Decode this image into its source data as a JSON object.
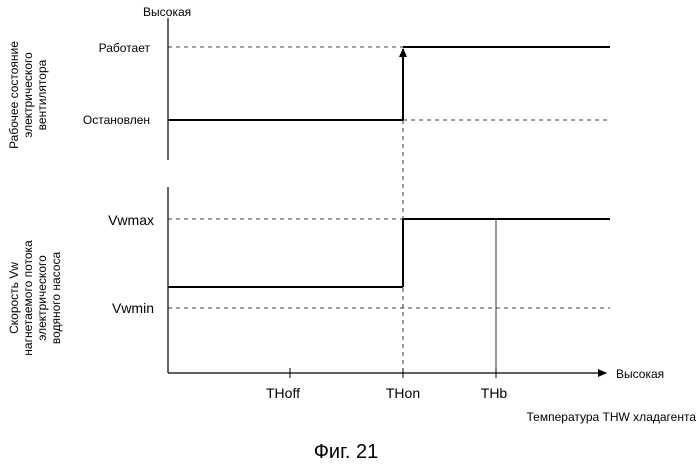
{
  "top_axis": {
    "high_label": "Высокая",
    "ylabel_lines": [
      "Рабочее состояние",
      "электрического",
      "вентилятора"
    ],
    "levels": {
      "on": "Работает",
      "off": "Остановлен"
    }
  },
  "bottom_axis": {
    "ylabel_lines": [
      "Скорость Vw",
      "нагнетаемого потока",
      "электрического",
      "водяного насоса"
    ],
    "levels": {
      "max": "Vwmax",
      "min": "Vwmin"
    }
  },
  "x_axis": {
    "high_label": "Высокая",
    "title": "Температура THW хладагента",
    "ticks": [
      "THoff",
      "THon",
      "THb"
    ]
  },
  "caption": "Фиг. 21"
}
